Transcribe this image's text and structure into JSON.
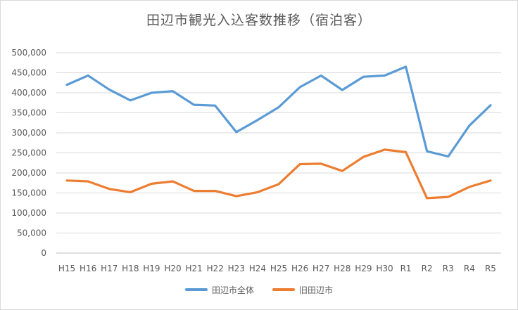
{
  "chart_data": {
    "type": "line",
    "title": "田辺市観光入込客数推移（宿泊客）",
    "xlabel": "",
    "ylabel": "",
    "categories": [
      "H15",
      "H16",
      "H17",
      "H18",
      "H19",
      "H20",
      "H21",
      "H22",
      "H23",
      "H24",
      "H25",
      "H26",
      "H27",
      "H28",
      "H29",
      "H30",
      "R1",
      "R2",
      "R3",
      "R4",
      "R5"
    ],
    "ylim": [
      0,
      500000
    ],
    "yticks": [
      0,
      50000,
      100000,
      150000,
      200000,
      250000,
      300000,
      350000,
      400000,
      450000,
      500000
    ],
    "ytick_labels": [
      "0",
      "50,000",
      "100,000",
      "150,000",
      "200,000",
      "250,000",
      "300,000",
      "350,000",
      "400,000",
      "450,000",
      "500,000"
    ],
    "grid": true,
    "legend_position": "bottom",
    "series": [
      {
        "name": "田辺市全体",
        "color": "#5b9bd5",
        "values": [
          420000,
          443000,
          408000,
          381000,
          400000,
          404000,
          370000,
          368000,
          302000,
          332000,
          364000,
          414000,
          443000,
          407000,
          440000,
          443000,
          465000,
          254000,
          241000,
          318000,
          369000
        ]
      },
      {
        "name": "旧田辺市",
        "color": "#ed7d31",
        "values": [
          181000,
          179000,
          160000,
          152000,
          173000,
          179000,
          155000,
          155000,
          142000,
          152000,
          172000,
          222000,
          223000,
          205000,
          240000,
          258000,
          252000,
          137000,
          140000,
          165000,
          181000
        ]
      }
    ]
  }
}
